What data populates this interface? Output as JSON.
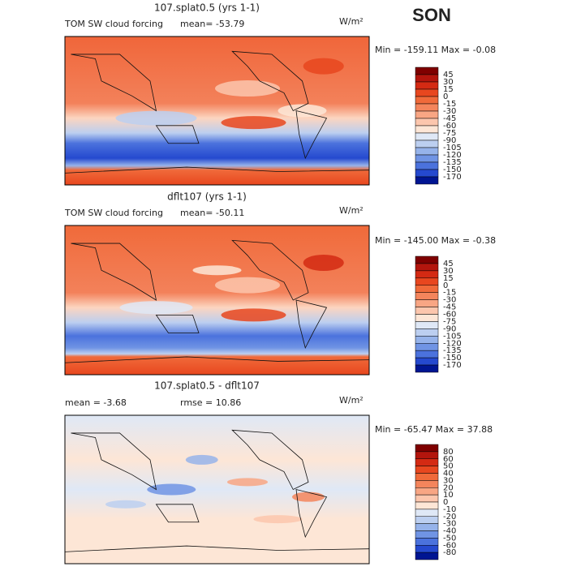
{
  "season": "SON",
  "panels": [
    {
      "title": "107.splat0.5 (yrs 1-1)",
      "left_label": "TOM SW cloud forcing",
      "stat1": "mean= -53.79",
      "units": "W/m²",
      "minmax": "Min = -159.11 Max =  -0.08",
      "colorbar": {
        "labels": [
          "45",
          "30",
          "15",
          "0",
          "-15",
          "-30",
          "-45",
          "-60",
          "-75",
          "-90",
          "-105",
          "-120",
          "-135",
          "-150",
          "-170"
        ],
        "colors": [
          "#7f0000",
          "#b3150d",
          "#d42a13",
          "#e8471f",
          "#f06a3a",
          "#f4855c",
          "#f8a684",
          "#fcc6ad",
          "#fde6d6",
          "#dfe8f6",
          "#bccff0",
          "#96b3ea",
          "#7094e4",
          "#4b72dd",
          "#2549cf",
          "#001592"
        ]
      }
    },
    {
      "title": "dflt107 (yrs 1-1)",
      "left_label": "TOM SW cloud forcing",
      "stat1": "mean= -50.11",
      "units": "W/m²",
      "minmax": "Min = -145.00 Max =  -0.38",
      "colorbar": {
        "labels": [
          "45",
          "30",
          "15",
          "0",
          "-15",
          "-30",
          "-45",
          "-60",
          "-75",
          "-90",
          "-105",
          "-120",
          "-135",
          "-150",
          "-170"
        ],
        "colors": [
          "#7f0000",
          "#b3150d",
          "#d42a13",
          "#e8471f",
          "#f06a3a",
          "#f4855c",
          "#f8a684",
          "#fcc6ad",
          "#fde6d6",
          "#dfe8f6",
          "#bccff0",
          "#96b3ea",
          "#7094e4",
          "#4b72dd",
          "#2549cf",
          "#001592"
        ]
      }
    },
    {
      "title": "107.splat0.5 - dflt107",
      "left_label": "mean =  -3.68",
      "stat1": "rmse =  10.86",
      "units": "W/m²",
      "minmax": "Min = -65.47 Max =  37.88",
      "colorbar": {
        "labels": [
          "80",
          "60",
          "50",
          "40",
          "30",
          "20",
          "10",
          "0",
          "-10",
          "-20",
          "-30",
          "-40",
          "-50",
          "-60",
          "-80"
        ],
        "colors": [
          "#7f0000",
          "#b3150d",
          "#d42a13",
          "#e8471f",
          "#f06a3a",
          "#f4855c",
          "#f8a684",
          "#fcc6ad",
          "#fde6d6",
          "#dfe8f6",
          "#bccff0",
          "#96b3ea",
          "#7094e4",
          "#4b72dd",
          "#2549cf",
          "#001592"
        ]
      }
    }
  ]
}
